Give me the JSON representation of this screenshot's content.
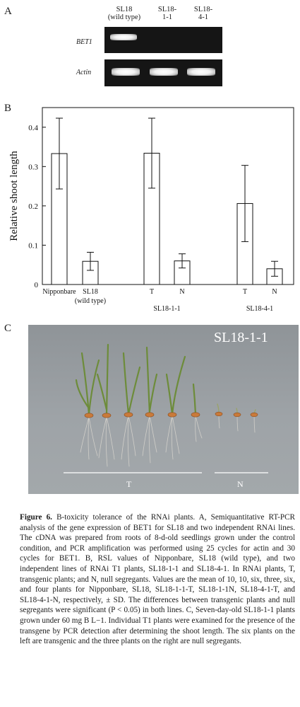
{
  "panel_a": {
    "letter": "A",
    "lanes": [
      "SL18\n(wild type)",
      "SL18-\n1-1",
      "SL18-\n4-1"
    ],
    "rows": [
      {
        "label": "BET1",
        "bands": [
          0.95,
          0,
          0
        ]
      },
      {
        "label": "Actin",
        "bands": [
          1,
          1,
          1
        ]
      }
    ]
  },
  "panel_b": {
    "letter": "B",
    "chart_data": {
      "type": "bar",
      "ylabel": "Relative shoot length",
      "ylim": [
        0,
        0.45
      ],
      "yticks": [
        "0",
        "0.1",
        "0.2",
        "0.3",
        "0.4"
      ],
      "categories": [
        "Nipponbare",
        "SL18\n(wild type)",
        "T",
        "N",
        "T",
        "N"
      ],
      "groups": [
        "SL18-1-1",
        "SL18-4-1"
      ],
      "values": [
        0.333,
        0.059,
        0.334,
        0.06,
        0.206,
        0.04
      ],
      "errors": [
        0.09,
        0.023,
        0.089,
        0.018,
        0.097,
        0.019
      ],
      "grid": false
    }
  },
  "panel_c": {
    "letter": "C",
    "title": "SL18-1-1",
    "left_group": "T",
    "right_group": "N"
  },
  "caption": {
    "figure_label": "Figure 6.",
    "text": "B-toxicity tolerance of the RNAi plants. A, Semiquantitative RT-PCR analysis of the gene expression of BET1 for SL18 and two independent RNAi lines. The cDNA was prepared from roots of 8-d-old seedlings grown under the control condition, and PCR amplification was performed using 25 cycles for actin and 30 cycles for BET1. B, RSL values of Nipponbare, SL18 (wild type), and two independent lines of RNAi T1 plants, SL18-1-1 and SL18-4-1. In RNAi plants, T, transgenic plants; and N, null segregants. Values are the mean of 10, 10, six, three, six, and four plants for Nipponbare, SL18, SL18-1-1-T, SL18-1-1N, SL18-4-1-T, and SL18-4-1-N, respectively, ± SD. The differences between transgenic plants and null segregants were significant (P < 0.05) in both lines. C, Seven-day-old SL18-1-1 plants grown under 60 mg B L−1. Individual T1 plants were examined for the presence of the transgene by PCR detection after determining the shoot length. The six plants on the left are transgenic and the three plants on the right are null segregants."
  }
}
